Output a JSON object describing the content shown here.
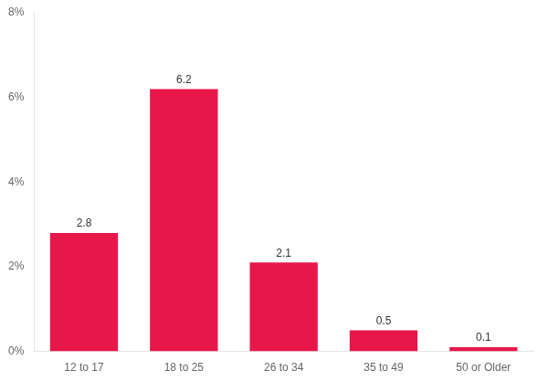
{
  "chart_data": {
    "type": "bar",
    "categories": [
      "12 to 17",
      "18 to 25",
      "26 to 34",
      "35 to 49",
      "50 or Older"
    ],
    "values": [
      2.8,
      6.2,
      2.1,
      0.5,
      0.1
    ],
    "color": "#E8174B",
    "ylim": [
      0,
      8
    ],
    "yticks": [
      {
        "value": 0,
        "label": "0%"
      },
      {
        "value": 2,
        "label": "2%"
      },
      {
        "value": 4,
        "label": "4%"
      },
      {
        "value": 6,
        "label": "6%"
      },
      {
        "value": 8,
        "label": "8%"
      }
    ],
    "grid": false,
    "data_labels": true
  }
}
